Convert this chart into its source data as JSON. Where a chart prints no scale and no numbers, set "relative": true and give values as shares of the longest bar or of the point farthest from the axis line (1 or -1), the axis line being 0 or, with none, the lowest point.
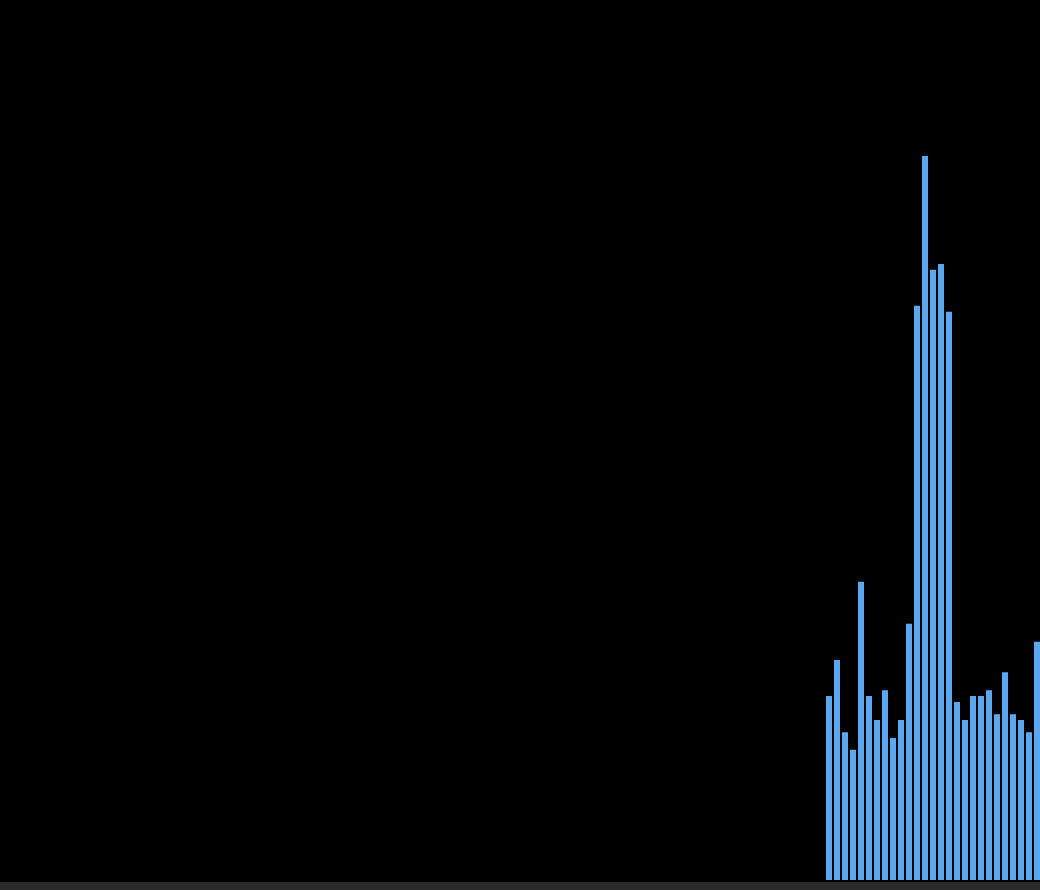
{
  "chart_data": {
    "type": "bar",
    "relative": true,
    "color": "#5aa9f0",
    "categories": [
      null,
      null,
      null,
      null,
      null,
      null,
      null,
      null,
      null,
      null,
      null,
      null,
      null,
      null,
      null,
      null,
      null,
      null,
      null,
      null,
      null,
      null,
      null,
      null,
      null,
      null,
      null
    ],
    "values": [
      0.254,
      0.304,
      0.204,
      0.18,
      0.412,
      0.254,
      0.221,
      0.262,
      0.196,
      0.221,
      0.354,
      0.793,
      1,
      0.843,
      0.851,
      0.785,
      0.246,
      0.221,
      0.254,
      0.254,
      0.262,
      0.229,
      0.287,
      0.229,
      0.221,
      0.204,
      0.329
    ]
  }
}
